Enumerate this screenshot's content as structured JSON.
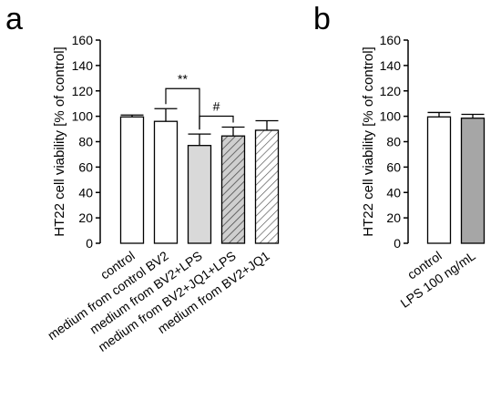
{
  "chart_data": [
    {
      "panel": "a",
      "type": "bar",
      "ylabel": "HT22 cell viability [% of control]",
      "ylim": [
        0,
        160
      ],
      "yticks": [
        0,
        20,
        40,
        60,
        80,
        100,
        120,
        140,
        160
      ],
      "categories": [
        "control",
        "medium from control BV2",
        "medium from BV2+LPS",
        "medium from BV2+JQ1+LPS",
        "medium from BV2+JQ1"
      ],
      "values": [
        99.5,
        96,
        77,
        84.5,
        89
      ],
      "errors": [
        1.5,
        10,
        9,
        7,
        7.5
      ],
      "fills": [
        "white",
        "white",
        "lightgray",
        "hatch-gray",
        "hatch-white"
      ],
      "colors": {
        "lightgray": "#d9d9d9",
        "hatch_gray_bg": "#cfcfcf",
        "hatch_stroke": "#555555"
      },
      "annotations": [
        {
          "text": "**",
          "from": 1,
          "to": 2
        },
        {
          "text": "#",
          "from": 2,
          "to": 3
        }
      ],
      "grid": false
    },
    {
      "panel": "b",
      "type": "bar",
      "ylabel": "HT22 cell viability [% of control]",
      "ylim": [
        0,
        160
      ],
      "yticks": [
        0,
        20,
        40,
        60,
        80,
        100,
        120,
        140,
        160
      ],
      "categories": [
        "control",
        "LPS 100 ng/mL"
      ],
      "values": [
        99.5,
        98.5
      ],
      "errors": [
        3.5,
        3
      ],
      "fills": [
        "white",
        "gray"
      ],
      "colors": {
        "gray": "#a6a6a6"
      },
      "grid": false
    }
  ]
}
